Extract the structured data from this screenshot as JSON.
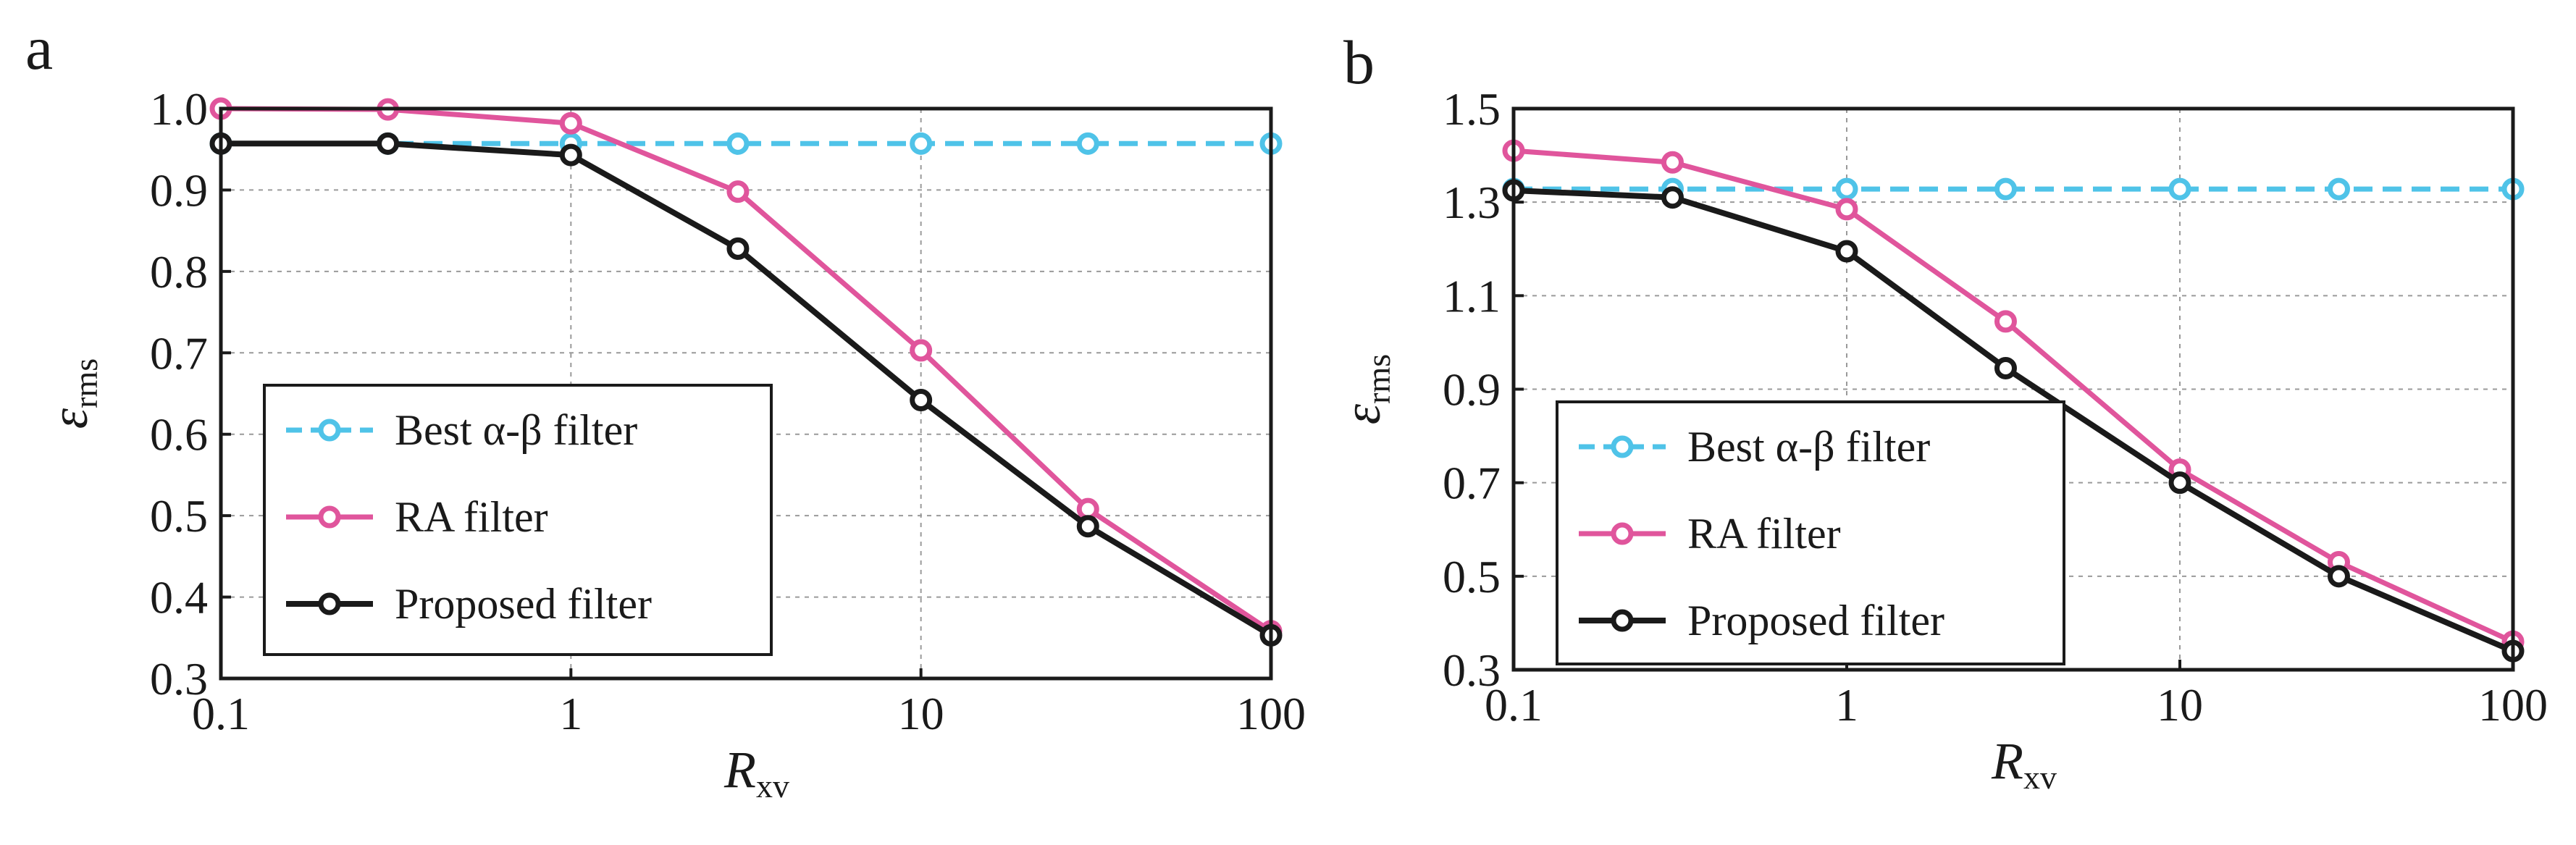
{
  "chart_data": [
    {
      "panel": "a",
      "type": "line",
      "xscale": "log",
      "xlim": [
        0.1,
        100
      ],
      "ylim": [
        0.3,
        1.0
      ],
      "xticks": [
        "0.1",
        "1",
        "10",
        "100"
      ],
      "yticks": [
        "0.3",
        "0.4",
        "0.5",
        "0.6",
        "0.7",
        "0.8",
        "0.9",
        "1.0"
      ],
      "xlabel": "R",
      "xlabel_sub": "xv",
      "ylabel": "ε",
      "ylabel_sub": "rms",
      "grid": true,
      "legend": "lower-left",
      "x": [
        0.1,
        0.3,
        1,
        3,
        10,
        30,
        100
      ],
      "series": [
        {
          "name": "Best α-β filter",
          "color": "#4fc3e8",
          "dashed": true,
          "values": [
            0.957,
            0.957,
            0.957,
            0.957,
            0.957,
            0.957,
            0.957
          ]
        },
        {
          "name": "RA filter",
          "color": "#e0559c",
          "dashed": false,
          "values": [
            1.0,
            0.999,
            0.982,
            0.898,
            0.703,
            0.508,
            0.358
          ]
        },
        {
          "name": "Proposed filter",
          "color": "#1a1a1a",
          "dashed": false,
          "values": [
            0.957,
            0.957,
            0.943,
            0.828,
            0.642,
            0.487,
            0.353
          ]
        }
      ]
    },
    {
      "panel": "b",
      "type": "line",
      "xscale": "log",
      "xlim": [
        0.1,
        100
      ],
      "ylim": [
        0.3,
        1.5
      ],
      "xticks": [
        "0.1",
        "1",
        "10",
        "100"
      ],
      "yticks": [
        "0.3",
        "0.5",
        "0.7",
        "0.9",
        "1.1",
        "1.3",
        "1.5"
      ],
      "xlabel": "R",
      "xlabel_sub": "xv",
      "ylabel": "ε",
      "ylabel_sub": "rms",
      "grid": true,
      "legend": "lower-left",
      "x": [
        0.1,
        0.3,
        1,
        3,
        10,
        30,
        100
      ],
      "series": [
        {
          "name": "Best α-β filter",
          "color": "#4fc3e8",
          "dashed": true,
          "values": [
            1.328,
            1.328,
            1.328,
            1.328,
            1.328,
            1.328,
            1.328
          ]
        },
        {
          "name": "RA filter",
          "color": "#e0559c",
          "dashed": false,
          "values": [
            1.41,
            1.385,
            1.285,
            1.045,
            0.728,
            0.53,
            0.36
          ]
        },
        {
          "name": "Proposed filter",
          "color": "#1a1a1a",
          "dashed": false,
          "values": [
            1.325,
            1.31,
            1.195,
            0.945,
            0.7,
            0.5,
            0.34
          ]
        }
      ]
    }
  ]
}
